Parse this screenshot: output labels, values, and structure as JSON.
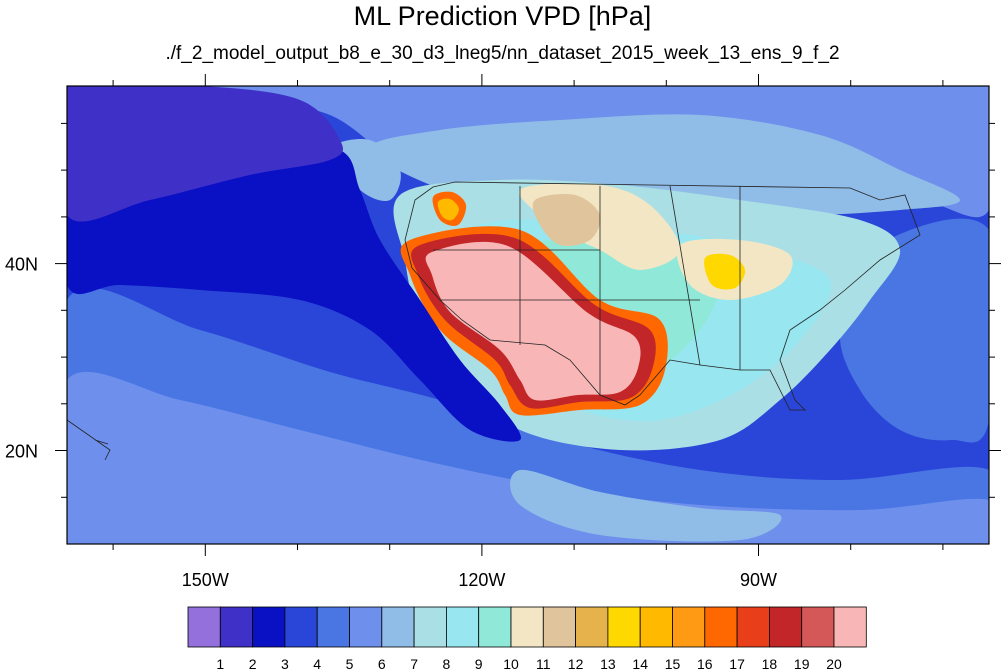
{
  "title": "ML Prediction VPD [hPa]",
  "subtitle": "./f_2_model_output_b8_e_30_d3_lneg5/nn_dataset_2015_week_13_ens_9_f_2",
  "map": {
    "lon_range": [
      -165,
      -65
    ],
    "lat_range": [
      10,
      59
    ],
    "lon_ticks": [
      {
        "lon": -150,
        "label": "150W"
      },
      {
        "lon": -120,
        "label": "120W"
      },
      {
        "lon": -90,
        "label": "90W"
      }
    ],
    "lat_ticks": [
      {
        "lat": 40,
        "label": "40N"
      },
      {
        "lat": 20,
        "label": "20N"
      }
    ],
    "background_level": 4
  },
  "colorbar": {
    "colors": [
      "#9370db",
      "#3f30c8",
      "#0a10c4",
      "#2a46d8",
      "#4a76e4",
      "#6e90ec",
      "#90bce8",
      "#aadfe6",
      "#98e6ef",
      "#90e8d8",
      "#f2e6c4",
      "#e0c59c",
      "#e6b24c",
      "#ffd800",
      "#ffba00",
      "#ff9a14",
      "#ff6800",
      "#e83e1a",
      "#c22628",
      "#d45858",
      "#f8b6b6"
    ],
    "labels": [
      "1",
      "2",
      "3",
      "4",
      "5",
      "6",
      "7",
      "8",
      "9",
      "10",
      "11",
      "12",
      "13",
      "14",
      "15",
      "16",
      "17",
      "18",
      "19",
      "20"
    ]
  }
}
